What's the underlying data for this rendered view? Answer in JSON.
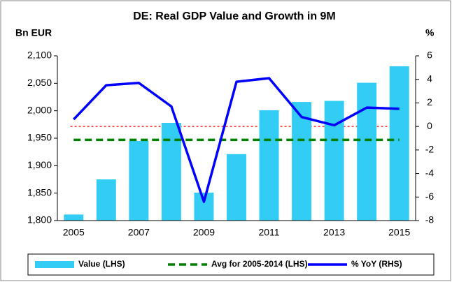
{
  "chart_data": {
    "type": "bar_line",
    "title": "DE: Real GDP Value and Growth in 9M",
    "y_label": "Bn EUR",
    "y2_label": "%",
    "categories": [
      "2005",
      null,
      "2007",
      null,
      "2009",
      null,
      "2011",
      null,
      "2013",
      null,
      "2015"
    ],
    "series": [
      {
        "name": "Value (LHS)",
        "type": "bar",
        "color": "#33ccf5",
        "values": [
          1811,
          1875,
          1945,
          1978,
          1851,
          1921,
          2001,
          2016,
          2018,
          2051,
          2081
        ]
      },
      {
        "name": "Avg for 2005-2014 (LHS)",
        "type": "dashed",
        "color": "#008000",
        "values": [
          1947,
          1947,
          1947,
          1947,
          1947,
          1947,
          1947,
          1947,
          1947,
          1947,
          1947
        ]
      },
      {
        "name": "% YoY (RHS)",
        "type": "line",
        "axis": "y2",
        "color": "#0000ff",
        "values": [
          0.6,
          3.5,
          3.7,
          1.7,
          -6.4,
          3.8,
          4.1,
          0.8,
          0.1,
          1.6,
          1.5
        ]
      }
    ],
    "ylim": [
      1800,
      2100
    ],
    "yticks": [
      {
        "value": 1800,
        "label": "1,800"
      },
      {
        "value": 1850,
        "label": "1,850"
      },
      {
        "value": 1900,
        "label": "1,900"
      },
      {
        "value": 1950,
        "label": "1,950"
      },
      {
        "value": 2000,
        "label": "2,000"
      },
      {
        "value": 2050,
        "label": "2,050"
      },
      {
        "value": 2100,
        "label": "2,100"
      }
    ],
    "y2lim": [
      -8,
      6
    ],
    "y2ticks": [
      -8,
      -6,
      -4,
      -2,
      0,
      2,
      4,
      6
    ],
    "zero_line_color": "#ff0000",
    "legend": "bottom"
  }
}
